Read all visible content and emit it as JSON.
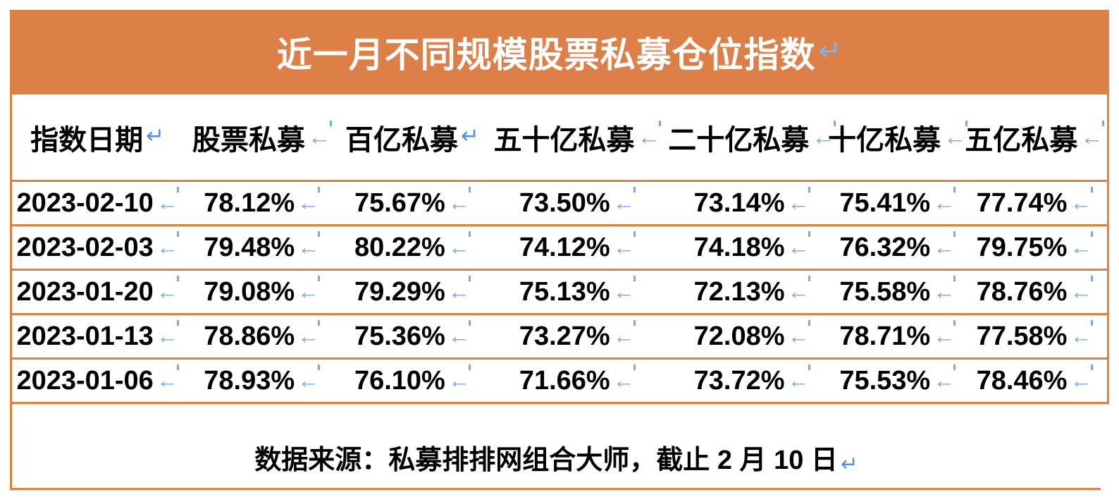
{
  "title": {
    "text": "近一月不同规模股票私募仓位指数",
    "mark": "↵"
  },
  "columns": [
    {
      "label": "指数日期",
      "mark": "↵"
    },
    {
      "label": "股票私募",
      "mark": "←"
    },
    {
      "label": "百亿私募",
      "mark": "↵"
    },
    {
      "label": "五十亿私募",
      "mark": "←"
    },
    {
      "label": "二十亿私募",
      "mark": "←"
    },
    {
      "label": "十亿私募",
      "mark": "←"
    },
    {
      "label": "五亿私募",
      "mark": "←"
    }
  ],
  "rows": [
    {
      "cells": [
        "2023-02-10",
        "78.12%",
        "75.67%",
        "73.50%",
        "73.14%",
        "75.41%",
        "77.74%"
      ]
    },
    {
      "cells": [
        "2023-02-03",
        "79.48%",
        "80.22%",
        "74.12%",
        "74.18%",
        "76.32%",
        "79.75%"
      ]
    },
    {
      "cells": [
        "2023-01-20",
        "79.08%",
        "79.29%",
        "75.13%",
        "72.13%",
        "75.58%",
        "78.76%"
      ]
    },
    {
      "cells": [
        "2023-01-13",
        "78.86%",
        "75.36%",
        "73.27%",
        "72.08%",
        "78.71%",
        "77.58%"
      ]
    },
    {
      "cells": [
        "2023-01-06",
        "78.93%",
        "76.10%",
        "71.66%",
        "73.72%",
        "75.53%",
        "78.46%"
      ]
    }
  ],
  "cell_mark": "←",
  "footer": {
    "text": "数据来源：私募排排网组合大师，截止 2 月 10 日",
    "mark": "↵"
  },
  "colors": {
    "title_fill": "#DD8047",
    "border": "#DF8140",
    "title_text": "#FFFFFF",
    "body_text": "#000000",
    "mark_blue": "#76ABEB",
    "mark_blue_dark": "#4F90E8"
  }
}
